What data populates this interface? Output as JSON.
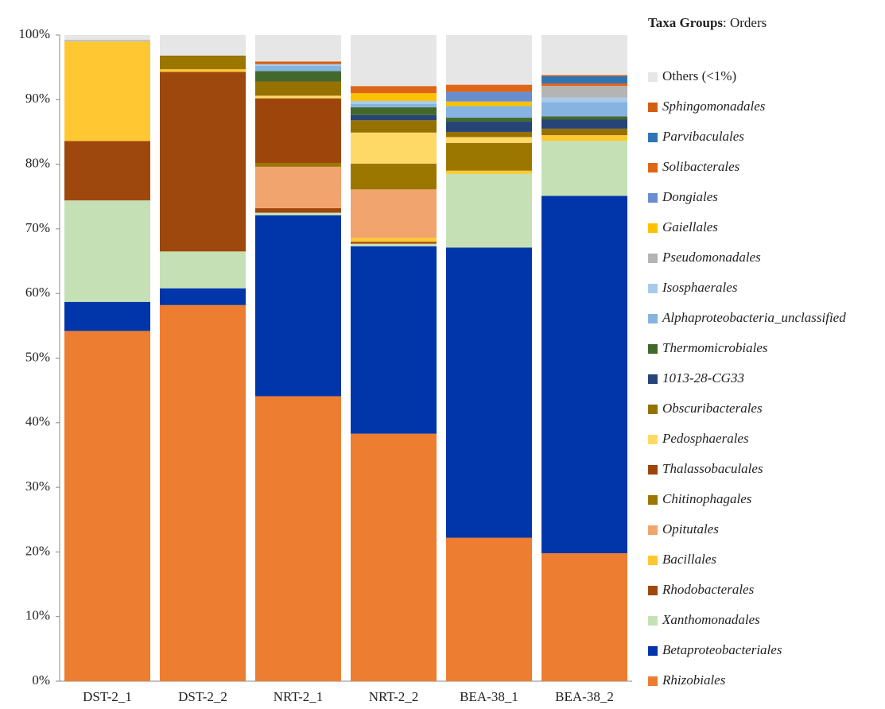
{
  "chart_data": {
    "type": "stacked_bar",
    "legend_title": {
      "bold": "Taxa Groups",
      "rest": ": Orders"
    },
    "categories": [
      "DST-2_1",
      "DST-2_2",
      "NRT-2_1",
      "NRT-2_2",
      "BEA-38_1",
      "BEA-38_2"
    ],
    "ylim": [
      0,
      100
    ],
    "yticks": [
      {
        "value": 0,
        "label": "0%"
      },
      {
        "value": 10,
        "label": "10%"
      },
      {
        "value": 20,
        "label": "20%"
      },
      {
        "value": 30,
        "label": "30%"
      },
      {
        "value": 40,
        "label": "40%"
      },
      {
        "value": 50,
        "label": "50%"
      },
      {
        "value": 60,
        "label": "60%"
      },
      {
        "value": 70,
        "label": "70%"
      },
      {
        "value": 80,
        "label": "80%"
      },
      {
        "value": 90,
        "label": "90%"
      },
      {
        "value": 100,
        "label": "100%"
      }
    ],
    "grid": false,
    "legend": "right",
    "series": [
      {
        "name": "Rhizobiales",
        "color": "#ED7D31",
        "values": [
          54.2,
          58.2,
          44.1,
          38.3,
          22.2,
          19.8
        ]
      },
      {
        "name": "Betaproteobacteriales",
        "color": "#0036AA",
        "values": [
          4.5,
          2.6,
          28.0,
          29.0,
          44.9,
          55.3
        ]
      },
      {
        "name": "Xanthomonadales",
        "color": "#C5E0B4",
        "values": [
          15.7,
          5.7,
          0.4,
          0.4,
          11.4,
          8.5
        ]
      },
      {
        "name": "Rhodobacterales",
        "color": "#9E480E",
        "values": [
          9.2,
          27.8,
          0.7,
          0.3,
          0,
          0
        ]
      },
      {
        "name": "Bacillales",
        "color": "#FFC833",
        "values": [
          15.4,
          0.4,
          0,
          0.6,
          0.5,
          0.9
        ]
      },
      {
        "name": "Opitutales",
        "color": "#F2A46F",
        "values": [
          0,
          0,
          6.4,
          7.5,
          0,
          0
        ]
      },
      {
        "name": "Chitinophagales",
        "color": "#9C7700",
        "values": [
          0,
          1.8,
          0.6,
          4.0,
          4.3,
          0
        ]
      },
      {
        "name": "Thalassobaculales",
        "color": "#9E450C",
        "values": [
          0,
          0,
          10.0,
          0,
          0,
          0
        ]
      },
      {
        "name": "Pedosphaerales",
        "color": "#FFD966",
        "values": [
          0,
          0,
          0.4,
          4.8,
          0.9,
          0
        ]
      },
      {
        "name": "Obscuribacterales",
        "color": "#967100",
        "values": [
          0,
          0.3,
          2.2,
          1.9,
          0.8,
          1.0
        ]
      },
      {
        "name": "1013-28-CG33",
        "color": "#264478",
        "values": [
          0,
          0,
          0,
          0.8,
          1.6,
          1.4
        ]
      },
      {
        "name": "Thermomicrobiales",
        "color": "#43682B",
        "values": [
          0,
          0,
          1.6,
          1.2,
          0.6,
          0.5
        ]
      },
      {
        "name": "Alphaproteobacteria_unclassified",
        "color": "#86B4E0",
        "values": [
          0,
          0,
          0.8,
          0.5,
          1.8,
          2.2
        ]
      },
      {
        "name": "Isosphaerales",
        "color": "#A9CBEA",
        "values": [
          0,
          0,
          0.3,
          0.5,
          0,
          0.7
        ]
      },
      {
        "name": "Pseudomonadales",
        "color": "#B4B4B4",
        "values": [
          0.2,
          0,
          0,
          0,
          0,
          1.8
        ]
      },
      {
        "name": "Gaiellales",
        "color": "#FFC000",
        "values": [
          0,
          0,
          0,
          1.2,
          0.7,
          0
        ]
      },
      {
        "name": "Dongiales",
        "color": "#698ED0",
        "values": [
          0,
          0,
          0,
          0,
          1.5,
          0
        ]
      },
      {
        "name": "Solibacterales",
        "color": "#DE6619",
        "values": [
          0,
          0,
          0,
          1.1,
          1.1,
          0.4
        ]
      },
      {
        "name": "Parvibaculales",
        "color": "#2E75B6",
        "values": [
          0,
          0,
          0,
          0,
          0,
          1.1
        ]
      },
      {
        "name": "Sphingomonadales",
        "color": "#D45F12",
        "values": [
          0,
          0,
          0.4,
          0,
          0,
          0.2
        ]
      },
      {
        "name": "Others (<1%)",
        "color": "#E7E6E6",
        "italic": false,
        "values": [
          0.8,
          3.2,
          4.1,
          7.9,
          7.7,
          6.2
        ]
      }
    ]
  }
}
